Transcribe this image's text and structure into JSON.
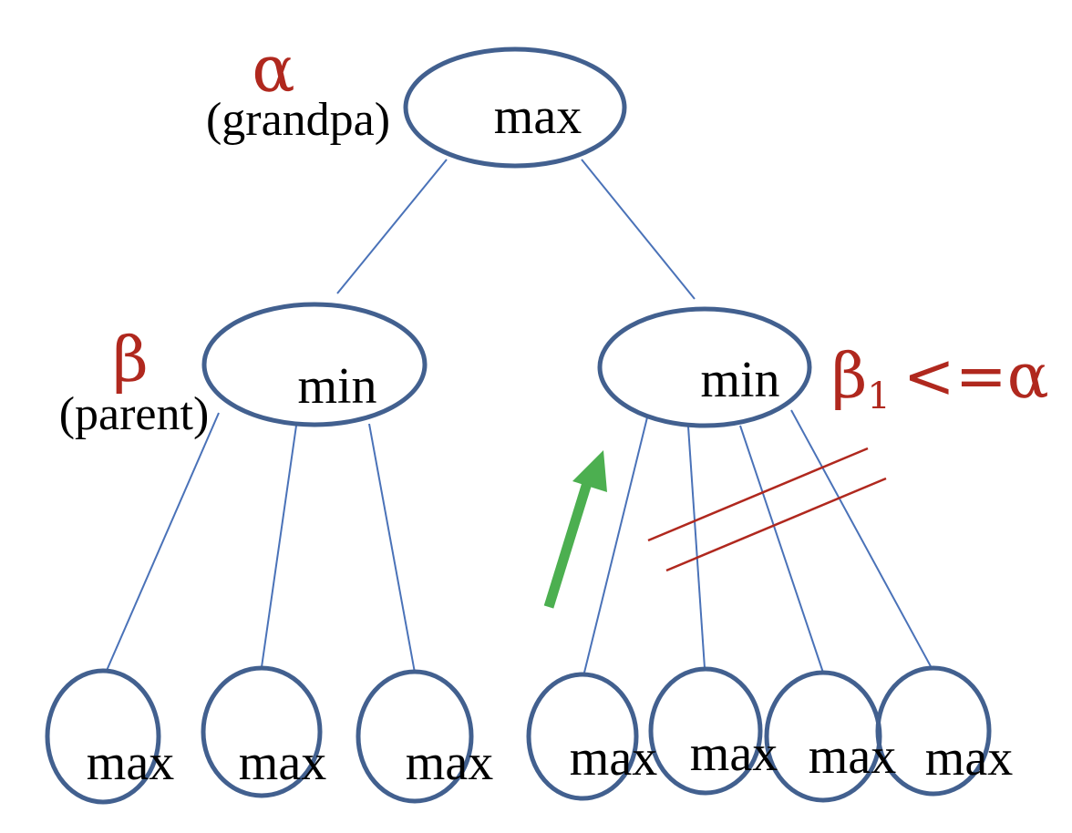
{
  "colors": {
    "node_stroke": "#42608f",
    "edge": "#4a72b8",
    "annotation_red": "#b0281e",
    "arrow_green": "#4caf50"
  },
  "tree": {
    "root": {
      "label": "max"
    },
    "left_min": {
      "label": "min"
    },
    "right_min": {
      "label": "min"
    },
    "leaves": [
      "max",
      "max",
      "max",
      "max",
      "max",
      "max",
      "max"
    ]
  },
  "annotations": {
    "alpha": {
      "symbol": "α",
      "role": "(grandpa)"
    },
    "beta": {
      "symbol": "β",
      "role": "(parent)"
    },
    "beta1": {
      "symbol": "β",
      "subscript": "1",
      "comparison": "<=α"
    }
  },
  "icons": {
    "prune_mark": "double-slash-prune-icon",
    "direction_arrow": "up-arrow-icon"
  }
}
